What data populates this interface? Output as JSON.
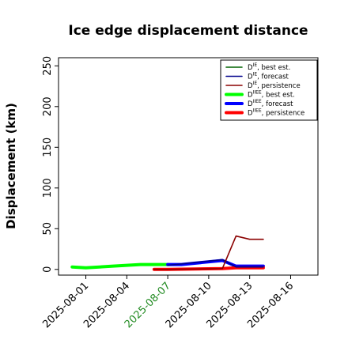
{
  "chart_data": {
    "type": "line",
    "title": "Ice edge displacement distance",
    "ylabel": "Displacement (km)",
    "xlabel": "",
    "ylim": [
      -7,
      260
    ],
    "yticks": [
      0,
      50,
      100,
      150,
      200,
      250
    ],
    "xlim": [
      "2025-07-30",
      "2025-08-18"
    ],
    "xticks": [
      "2025-08-01",
      "2025-08-04",
      "2025-08-07",
      "2025-08-10",
      "2025-08-13",
      "2025-08-16"
    ],
    "highlighted_xtick": "2025-08-07",
    "highlight_color": "#228B22",
    "grid": false,
    "legend_position": "top-right",
    "series": [
      {
        "name": "D^IE, best est.",
        "color": "#006400",
        "line_width": "thin",
        "x": [],
        "y": []
      },
      {
        "name": "D^IE, forecast",
        "color": "#00008B",
        "line_width": "thin",
        "x": [
          "2025-08-07",
          "2025-08-11",
          "2025-08-12",
          "2025-08-14"
        ],
        "y": [
          5,
          12,
          3,
          3
        ]
      },
      {
        "name": "D^IE, persistence",
        "color": "#8B0000",
        "line_width": "thin",
        "x": [
          "2025-08-06",
          "2025-08-07",
          "2025-08-11",
          "2025-08-12",
          "2025-08-13",
          "2025-08-14"
        ],
        "y": [
          0,
          0,
          1,
          41,
          37,
          37
        ]
      },
      {
        "name": "D^IIEE, best est.",
        "color": "#00FF00",
        "line_width": "thick",
        "x": [
          "2025-07-31",
          "2025-08-01",
          "2025-08-03",
          "2025-08-04",
          "2025-08-05",
          "2025-08-06",
          "2025-08-07"
        ],
        "y": [
          3,
          2,
          4,
          5,
          6,
          6,
          6
        ]
      },
      {
        "name": "D^IIEE, forecast",
        "color": "#0000FF",
        "line_width": "thick",
        "x": [
          "2025-08-07",
          "2025-08-08",
          "2025-08-11",
          "2025-08-12",
          "2025-08-13",
          "2025-08-14"
        ],
        "y": [
          6,
          6,
          11,
          4,
          4,
          4
        ]
      },
      {
        "name": "D^IIEE, persistence",
        "color": "#FF0000",
        "line_width": "thick",
        "x": [
          "2025-08-06",
          "2025-08-07",
          "2025-08-11",
          "2025-08-12",
          "2025-08-13",
          "2025-08-14"
        ],
        "y": [
          0,
          0,
          1,
          2,
          2,
          2
        ]
      }
    ]
  }
}
